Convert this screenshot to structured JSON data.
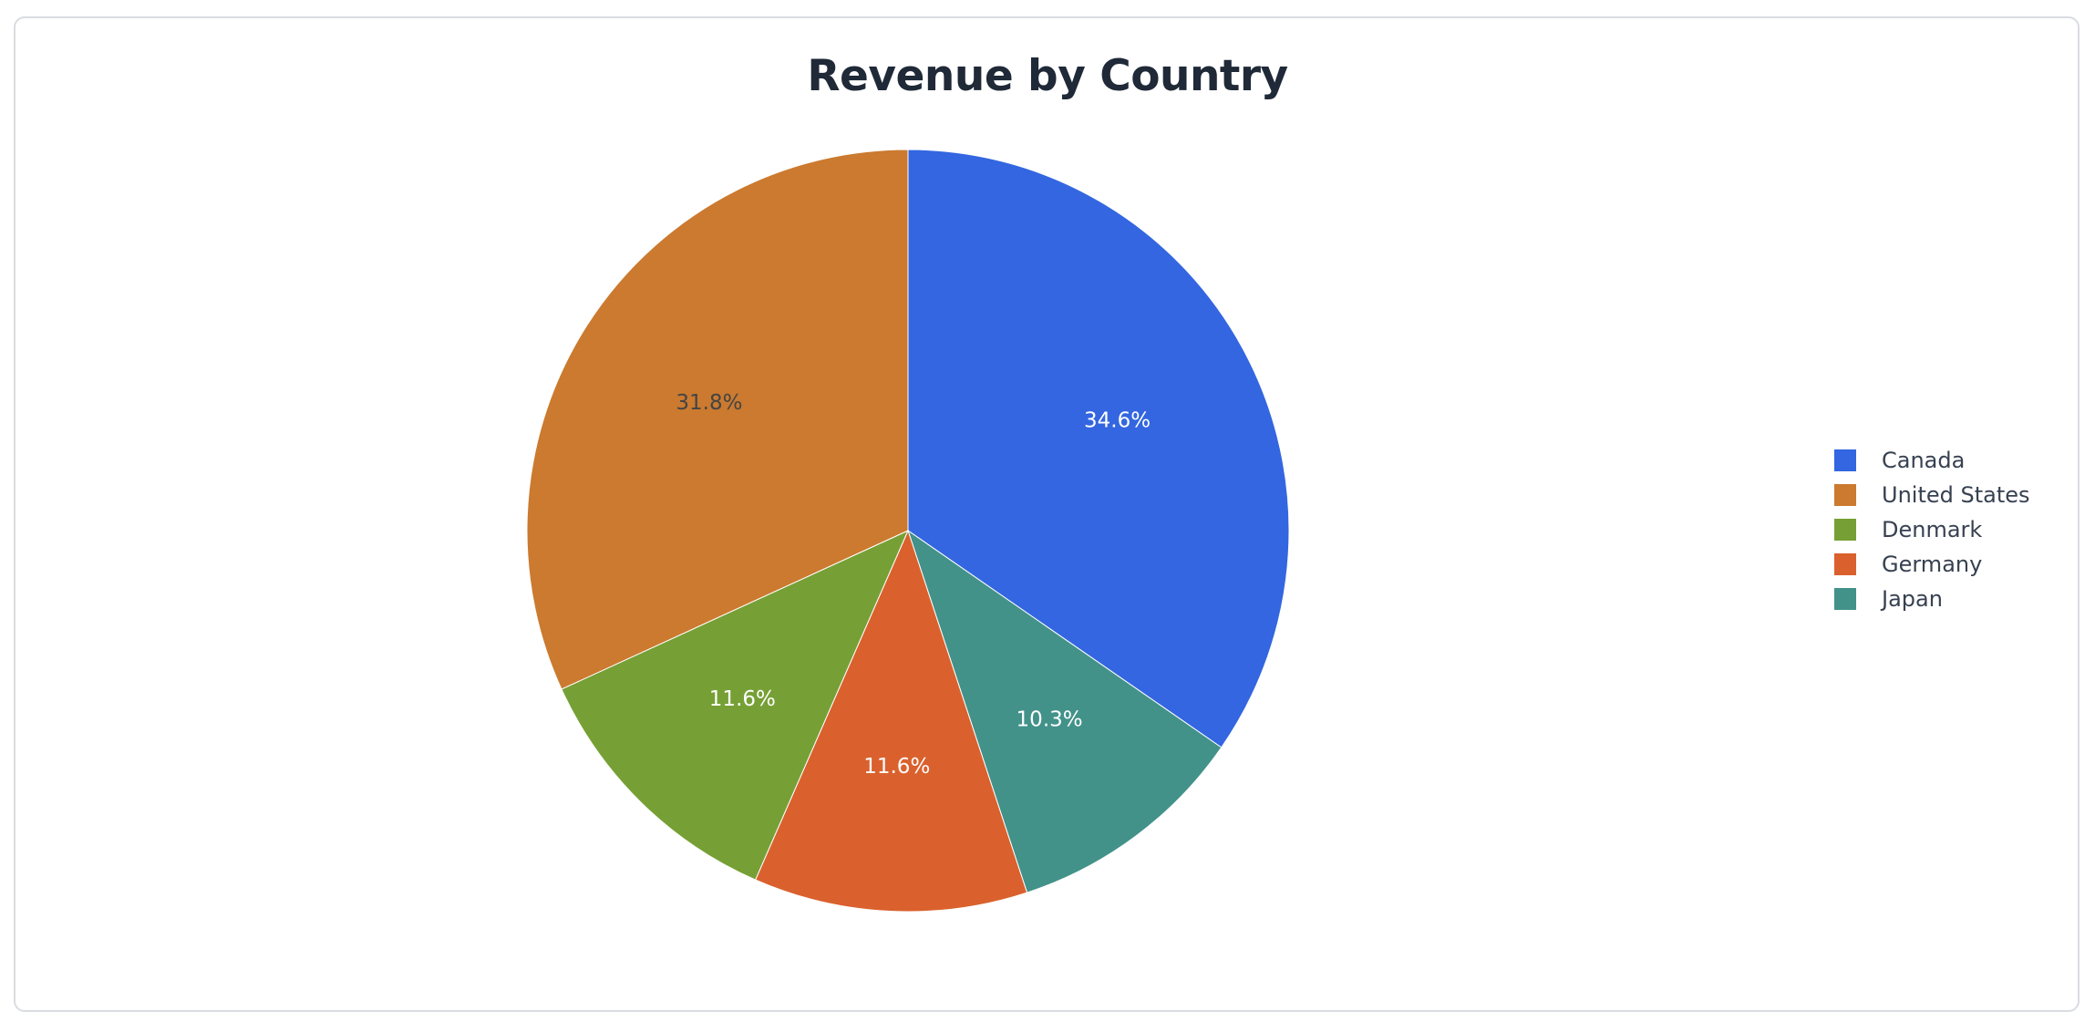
{
  "chart_data": {
    "type": "pie",
    "title": "Revenue by Country",
    "legend_position": "right",
    "slices": [
      {
        "name": "Canada",
        "value": 34.6,
        "label": "34.6%",
        "color": "#3366e0",
        "label_color": "#ffffff"
      },
      {
        "name": "Japan",
        "value": 10.3,
        "label": "10.3%",
        "color": "#42928a",
        "label_color": "#ffffff"
      },
      {
        "name": "Germany",
        "value": 11.6,
        "label": "11.6%",
        "color": "#da612d",
        "label_color": "#ffffff"
      },
      {
        "name": "Denmark",
        "value": 11.6,
        "label": "11.6%",
        "color": "#76a035",
        "label_color": "#ffffff"
      },
      {
        "name": "United States",
        "value": 31.8,
        "label": "31.8%",
        "color": "#cb7a2f",
        "label_color": "#444444"
      }
    ],
    "legend": [
      {
        "name": "Canada",
        "color": "#3366e0"
      },
      {
        "name": "United States",
        "color": "#cb7a2f"
      },
      {
        "name": "Denmark",
        "color": "#76a035"
      },
      {
        "name": "Germany",
        "color": "#da612d"
      },
      {
        "name": "Japan",
        "color": "#42928a"
      }
    ]
  }
}
